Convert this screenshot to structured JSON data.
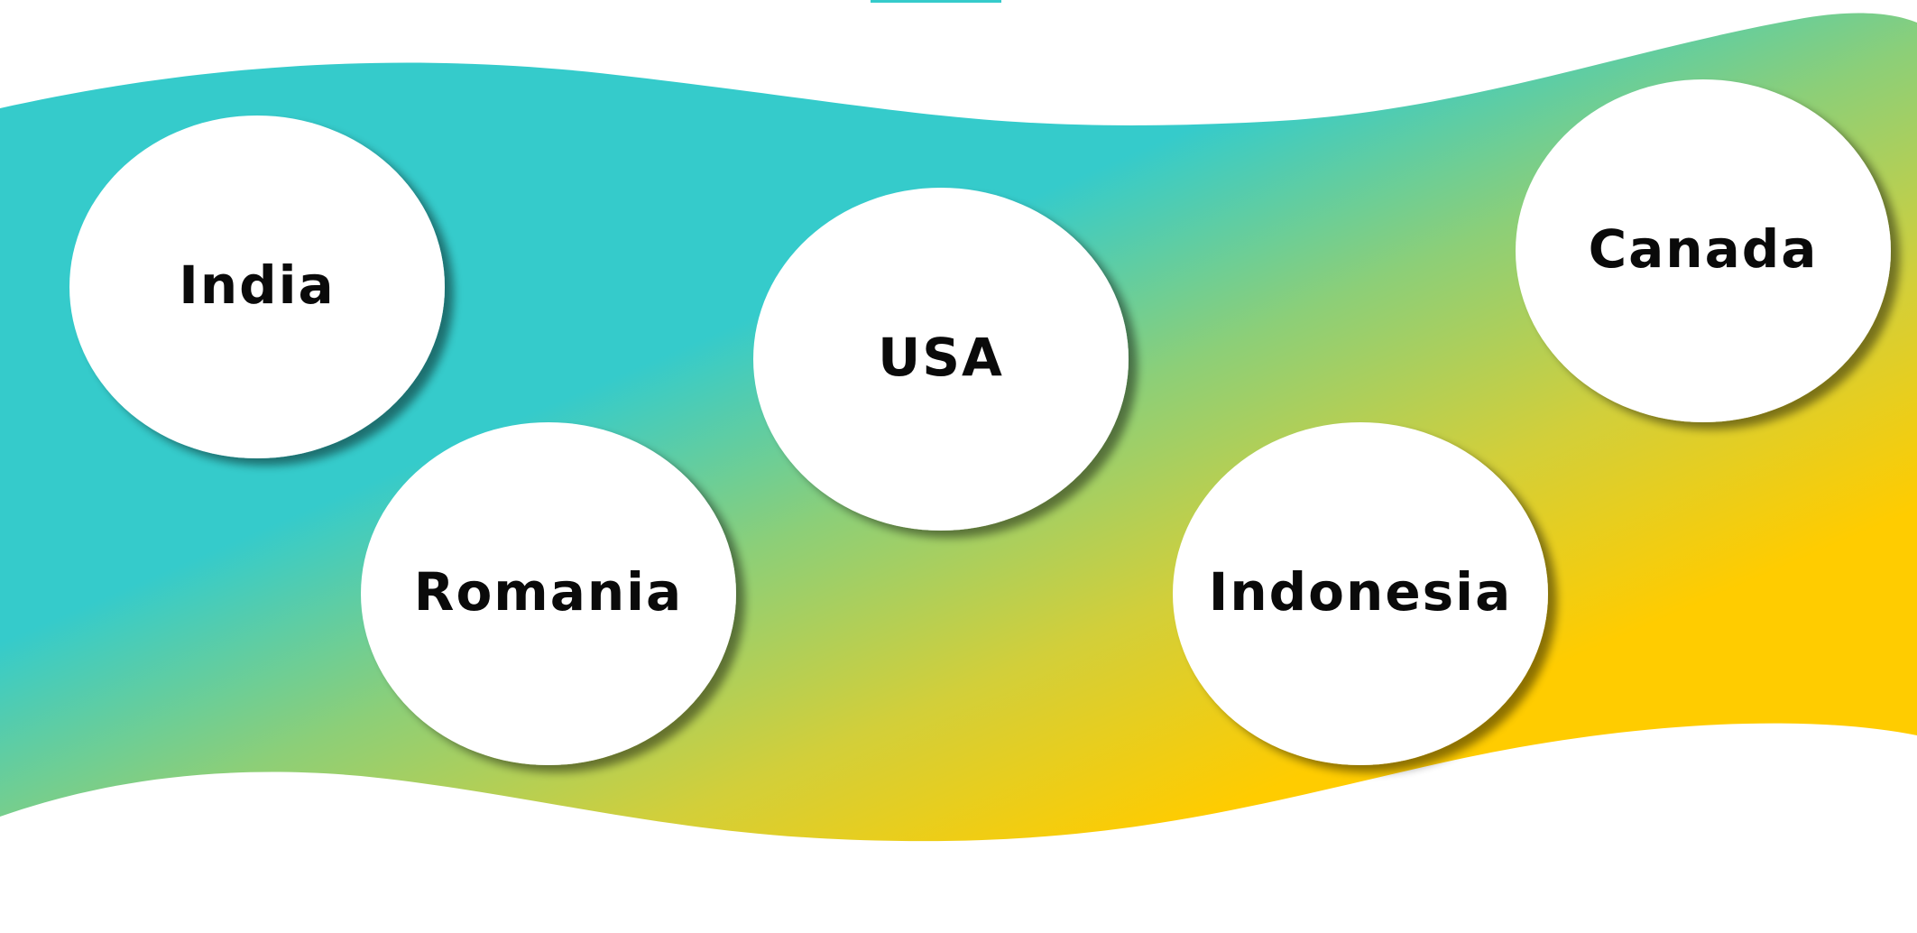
{
  "colors": {
    "band_start": "#35CBCB",
    "band_mid": "#A8D060",
    "band_end": "#FFCC00",
    "bubble_fill": "#FFFFFF",
    "label_text": "#0A0A0A"
  },
  "diagram": {
    "bubbles": [
      {
        "id": "india",
        "label": "India"
      },
      {
        "id": "usa",
        "label": "USA"
      },
      {
        "id": "romania",
        "label": "Romania"
      },
      {
        "id": "indonesia",
        "label": "Indonesia"
      },
      {
        "id": "canada",
        "label": "Canada"
      }
    ]
  }
}
